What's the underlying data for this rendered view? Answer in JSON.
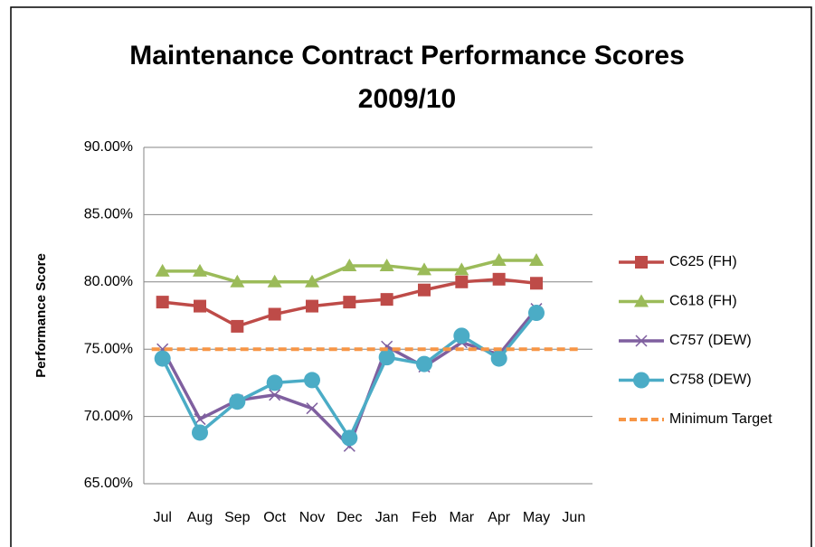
{
  "chart_data": {
    "type": "line",
    "title": "Maintenance Contract Performance Scores 2009/10",
    "y_label": "Performance Score",
    "categories": [
      "Jul",
      "Aug",
      "Sep",
      "Oct",
      "Nov",
      "Dec",
      "Jan",
      "Feb",
      "Mar",
      "Apr",
      "May",
      "Jun"
    ],
    "series": [
      {
        "name": "C625 (FH)",
        "color": "#be4b48",
        "marker": "square",
        "values": [
          78.5,
          78.2,
          76.7,
          77.6,
          78.2,
          78.5,
          78.7,
          79.4,
          80.0,
          80.2,
          79.9,
          null
        ]
      },
      {
        "name": "C618 (FH)",
        "color": "#9bbb59",
        "marker": "triangle",
        "values": [
          80.8,
          80.8,
          80.0,
          80.0,
          80.0,
          81.2,
          81.2,
          80.9,
          80.9,
          81.6,
          81.6,
          null
        ]
      },
      {
        "name": "C757 (DEW)",
        "color": "#7f5f9f",
        "marker": "x",
        "values": [
          75.0,
          69.8,
          71.2,
          71.6,
          70.6,
          67.8,
          75.2,
          73.7,
          75.5,
          74.6,
          78.0,
          null
        ]
      },
      {
        "name": "C758 (DEW)",
        "color": "#4bacc6",
        "marker": "circle",
        "values": [
          74.3,
          68.8,
          71.1,
          72.5,
          72.7,
          68.4,
          74.4,
          73.9,
          76.0,
          74.3,
          77.7,
          null
        ]
      },
      {
        "name": "Minimum Target",
        "color": "#f79646",
        "dashed": true,
        "values": [
          75,
          75,
          75,
          75,
          75,
          75,
          75,
          75,
          75,
          75,
          75,
          75
        ]
      }
    ],
    "ylim": [
      65,
      90
    ],
    "yticks": [
      {
        "value": 65,
        "label": "65.00%"
      },
      {
        "value": 70,
        "label": "70.00%"
      },
      {
        "value": 75,
        "label": "75.00%"
      },
      {
        "value": 80,
        "label": "80.00%"
      },
      {
        "value": 85,
        "label": "85.00%"
      },
      {
        "value": 90,
        "label": "90.00%"
      }
    ],
    "grid": true,
    "legend": "right"
  }
}
